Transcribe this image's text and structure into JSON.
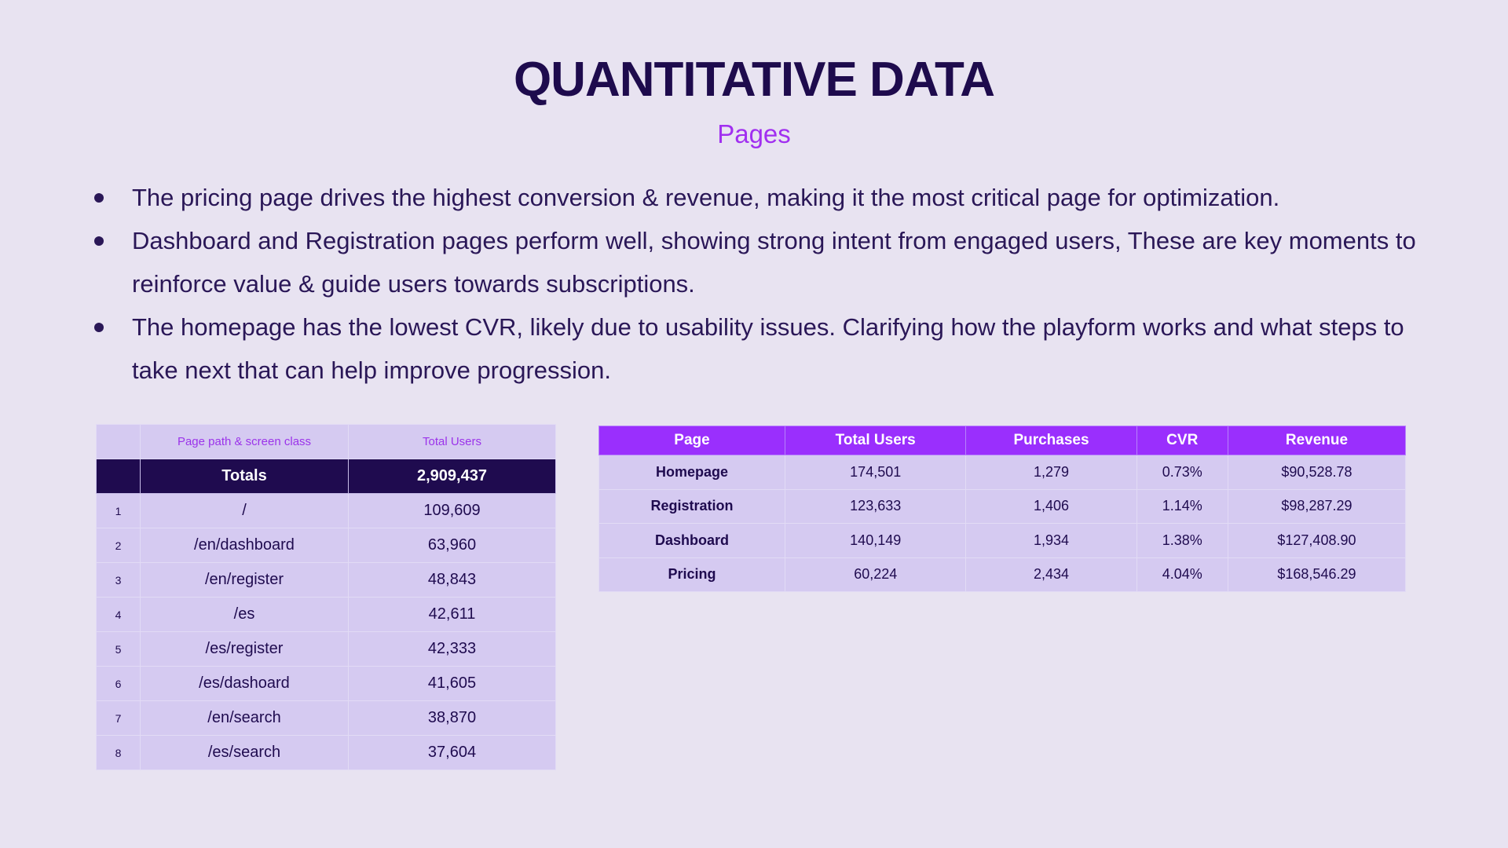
{
  "title": "QUANTITATIVE DATA",
  "subtitle": "Pages",
  "bullets": [
    "The pricing page drives the highest conversion & revenue, making it the most critical page for optimization.",
    "Dashboard and Registration pages perform well, showing strong intent from engaged users, These are key moments to reinforce value & guide users towards subscriptions.",
    "The homepage has the lowest CVR, likely due to usability issues. Clarifying how the playform works and what steps to take next that can help improve progression."
  ],
  "left_table": {
    "headers": [
      "",
      "Page path & screen class",
      "Total Users"
    ],
    "totals_label": "Totals",
    "totals_value": "2,909,437",
    "rows": [
      [
        "1",
        "/",
        "109,609"
      ],
      [
        "2",
        "/en/dashboard",
        "63,960"
      ],
      [
        "3",
        "/en/register",
        "48,843"
      ],
      [
        "4",
        "/es",
        "42,611"
      ],
      [
        "5",
        "/es/register",
        "42,333"
      ],
      [
        "6",
        "/es/dashoard",
        "41,605"
      ],
      [
        "7",
        "/en/search",
        "38,870"
      ],
      [
        "8",
        "/es/search",
        "37,604"
      ]
    ]
  },
  "right_table": {
    "headers": [
      "Page",
      "Total Users",
      "Purchases",
      "CVR",
      "Revenue"
    ],
    "rows": [
      [
        "Homepage",
        "174,501",
        "1,279",
        "0.73%",
        "$90,528.78"
      ],
      [
        "Registration",
        "123,633",
        "1,406",
        "1.14%",
        "$98,287.29"
      ],
      [
        "Dashboard",
        "140,149",
        "1,934",
        "1.38%",
        "$127,408.90"
      ],
      [
        "Pricing",
        "60,224",
        "2,434",
        "4.04%",
        "$168,546.29"
      ]
    ]
  }
}
